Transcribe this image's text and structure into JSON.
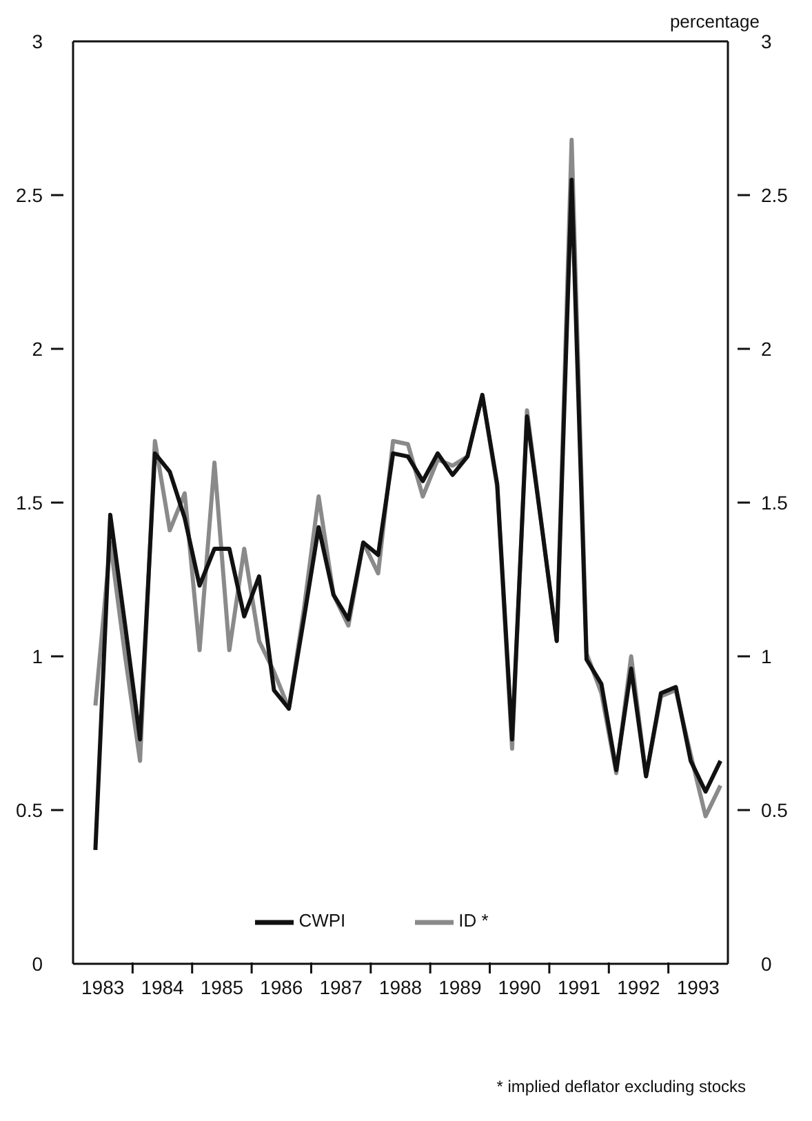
{
  "chart_data": {
    "type": "line",
    "ylabel": null,
    "y2label": "percentage",
    "x": [
      1983.375,
      1983.625,
      1983.875,
      1984.125,
      1984.375,
      1984.625,
      1984.875,
      1985.125,
      1985.375,
      1985.625,
      1985.875,
      1986.125,
      1986.375,
      1986.625,
      1986.875,
      1987.125,
      1987.375,
      1987.625,
      1987.875,
      1988.125,
      1988.375,
      1988.625,
      1988.875,
      1989.125,
      1989.375,
      1989.625,
      1989.875,
      1990.125,
      1990.375,
      1990.625,
      1990.875,
      1991.125,
      1991.375,
      1991.625,
      1991.875,
      1992.125,
      1992.375,
      1992.625,
      1992.875,
      1993.125,
      1993.375,
      1993.625,
      1993.875
    ],
    "series": [
      {
        "name": "ID *",
        "color": "#8a8a8a",
        "values": [
          0.84,
          1.37,
          1.0,
          0.66,
          1.7,
          1.41,
          1.53,
          1.02,
          1.63,
          1.02,
          1.35,
          1.05,
          0.95,
          0.83,
          1.15,
          1.52,
          1.2,
          1.1,
          1.37,
          1.27,
          1.7,
          1.69,
          1.52,
          1.64,
          1.62,
          1.65,
          1.85,
          1.55,
          0.7,
          1.8,
          1.42,
          1.05,
          2.68,
          1.01,
          0.88,
          0.62,
          1.0,
          0.61,
          0.87,
          0.89,
          0.68,
          0.48,
          0.58
        ]
      },
      {
        "name": "CWPI",
        "color": "#111111",
        "values": [
          0.37,
          1.46,
          1.1,
          0.73,
          1.66,
          1.6,
          1.45,
          1.23,
          1.35,
          1.35,
          1.13,
          1.26,
          0.89,
          0.83,
          1.12,
          1.42,
          1.2,
          1.12,
          1.37,
          1.33,
          1.66,
          1.65,
          1.57,
          1.66,
          1.59,
          1.65,
          1.85,
          1.56,
          0.73,
          1.78,
          1.42,
          1.05,
          2.55,
          0.99,
          0.91,
          0.63,
          0.96,
          0.61,
          0.88,
          0.9,
          0.66,
          0.56,
          0.66
        ]
      }
    ],
    "xlim": [
      1983,
      1994
    ],
    "xticks": [
      {
        "value": 1983.5,
        "label": "1983"
      },
      {
        "value": 1984,
        "label": null
      },
      {
        "value": 1984.5,
        "label": "1984"
      },
      {
        "value": 1985,
        "label": null
      },
      {
        "value": 1985.5,
        "label": "1985"
      },
      {
        "value": 1986,
        "label": null
      },
      {
        "value": 1986.5,
        "label": "1986"
      },
      {
        "value": 1987,
        "label": null
      },
      {
        "value": 1987.5,
        "label": "1987"
      },
      {
        "value": 1988,
        "label": null
      },
      {
        "value": 1988.5,
        "label": "1988"
      },
      {
        "value": 1989,
        "label": null
      },
      {
        "value": 1989.5,
        "label": "1989"
      },
      {
        "value": 1990,
        "label": null
      },
      {
        "value": 1990.5,
        "label": "1990"
      },
      {
        "value": 1991,
        "label": null
      },
      {
        "value": 1991.5,
        "label": "1991"
      },
      {
        "value": 1992,
        "label": null
      },
      {
        "value": 1992.5,
        "label": "1992"
      },
      {
        "value": 1993,
        "label": null
      },
      {
        "value": 1993.5,
        "label": "1993"
      }
    ],
    "ylim": [
      0,
      3
    ],
    "yticks": [
      0,
      0.5,
      1,
      1.5,
      2,
      2.5,
      3
    ],
    "y2lim": [
      0,
      3
    ],
    "y2ticks": [
      0,
      0.5,
      1,
      1.5,
      2,
      2.5,
      3
    ],
    "legend": "bottom",
    "marker": "none",
    "line_style": "solid",
    "annotations": [
      "* implied deflator excluding stocks"
    ]
  }
}
